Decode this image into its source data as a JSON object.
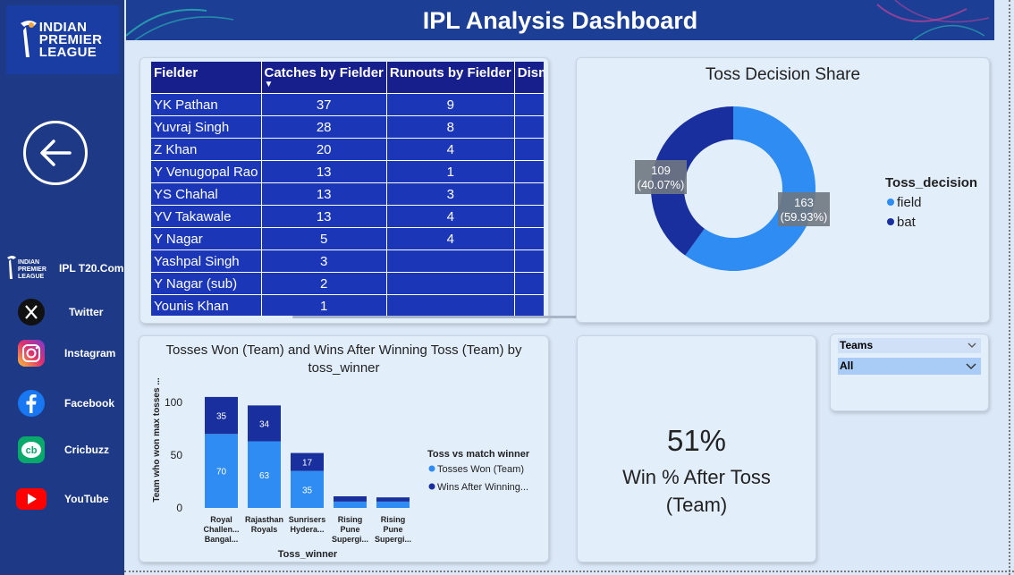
{
  "header": {
    "title": "IPL Analysis Dashboard"
  },
  "sidebar": {
    "logo_lines": [
      "INDIAN",
      "PREMIER",
      "LEAGUE"
    ],
    "socials": [
      {
        "label": "IPL T20.Com",
        "icon": "ipl-logo-icon"
      },
      {
        "label": "Twitter",
        "icon": "x-twitter-icon"
      },
      {
        "label": "Instagram",
        "icon": "instagram-icon"
      },
      {
        "label": "Facebook",
        "icon": "facebook-icon"
      },
      {
        "label": "Cricbuzz",
        "icon": "cricbuzz-icon"
      },
      {
        "label": "YouTube",
        "icon": "youtube-icon"
      }
    ],
    "mini_logo_lines": [
      "INDIAN",
      "PREMIER",
      "LEAGUE"
    ]
  },
  "fielders_table": {
    "headers": [
      "Fielder",
      "Catches by Fielder",
      "Runouts by Fielder",
      "Dism"
    ],
    "sort_indicator": "▼",
    "rows": [
      [
        "YK Pathan",
        "37",
        "9",
        ""
      ],
      [
        "Yuvraj Singh",
        "28",
        "8",
        ""
      ],
      [
        "Z Khan",
        "20",
        "4",
        ""
      ],
      [
        "Y Venugopal Rao",
        "13",
        "1",
        ""
      ],
      [
        "YS Chahal",
        "13",
        "3",
        ""
      ],
      [
        "YV Takawale",
        "13",
        "4",
        ""
      ],
      [
        "Y Nagar",
        "5",
        "4",
        ""
      ],
      [
        "Yashpal Singh",
        "3",
        "",
        ""
      ],
      [
        "Y Nagar (sub)",
        "2",
        "",
        ""
      ],
      [
        "Younis Khan",
        "1",
        "",
        ""
      ]
    ]
  },
  "donut": {
    "title": "Toss Decision Share",
    "legend_title": "Toss_decision",
    "slices": [
      {
        "name": "field",
        "value": 163,
        "label": "163",
        "pct": "(59.93%)",
        "color": "#2f8cf2"
      },
      {
        "name": "bat",
        "value": 109,
        "label": "109",
        "pct": "(40.07%)",
        "color": "#1a2f9e"
      }
    ]
  },
  "chart_data": {
    "type": "bar",
    "title": "Tosses Won (Team) and Wins After Winning Toss (Team) by toss_winner",
    "xlabel": "Toss_winner",
    "ylabel": "Team who won max tosses ...",
    "ylim": [
      0,
      110
    ],
    "yticks": [
      "0",
      "50",
      "100"
    ],
    "categories": [
      [
        "Royal",
        "Challen...",
        "Bangal..."
      ],
      [
        "Rajasthan",
        "Royals"
      ],
      [
        "Sunrisers",
        "Hydera..."
      ],
      [
        "Rising",
        "Pune",
        "Supergi..."
      ],
      [
        "Rising",
        "Pune",
        "Supergi..."
      ]
    ],
    "legend_title": "Toss vs match winner",
    "series": [
      {
        "name": "Tosses Won (Team)",
        "color": "#2f8cf2",
        "values": [
          70,
          63,
          35,
          6,
          6
        ],
        "labels": [
          "70",
          "63",
          "35",
          "",
          ""
        ]
      },
      {
        "name": "Wins After Winning...",
        "color": "#1a2f9e",
        "values": [
          35,
          34,
          17,
          5,
          4
        ],
        "labels": [
          "35",
          "34",
          "17",
          "",
          ""
        ]
      }
    ]
  },
  "kpi": {
    "value": "51%",
    "label": "Win % After Toss (Team)"
  },
  "slicer": {
    "header": "Teams",
    "selected": "All"
  }
}
